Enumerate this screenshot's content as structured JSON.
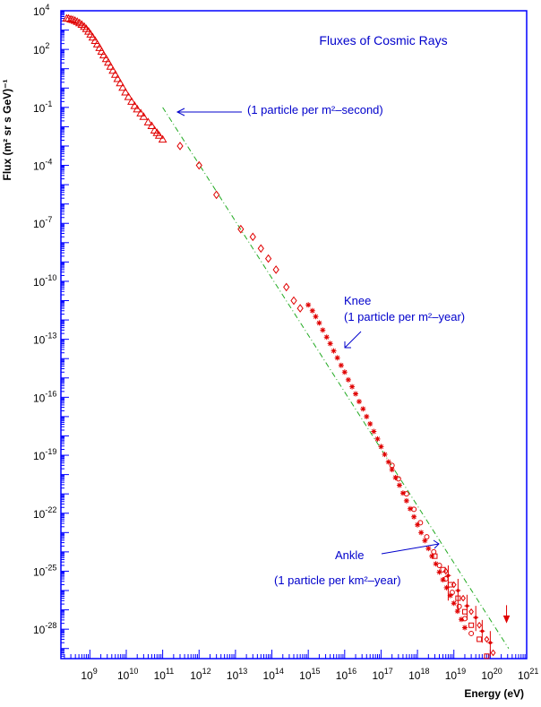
{
  "chart_data": {
    "type": "scatter",
    "title": "Fluxes of Cosmic Rays",
    "xlabel": "Energy (eV)",
    "ylabel": "Flux (m² sr s GeV)⁻¹",
    "xscale": "log",
    "yscale": "log",
    "xlim": [
      160000000.0,
      1e+21
    ],
    "ylim": [
      3e-30,
      10000.0
    ],
    "x_ticks": [
      {
        "base": "10",
        "exp": "9",
        "value": 1000000000.0
      },
      {
        "base": "10",
        "exp": "10",
        "value": 10000000000.0
      },
      {
        "base": "10",
        "exp": "11",
        "value": 100000000000.0
      },
      {
        "base": "10",
        "exp": "12",
        "value": 1000000000000.0
      },
      {
        "base": "10",
        "exp": "13",
        "value": 10000000000000.0
      },
      {
        "base": "10",
        "exp": "14",
        "value": 100000000000000.0
      },
      {
        "base": "10",
        "exp": "15",
        "value": 1000000000000000.0
      },
      {
        "base": "10",
        "exp": "16",
        "value": 1e+16
      },
      {
        "base": "10",
        "exp": "17",
        "value": 1e+17
      },
      {
        "base": "10",
        "exp": "18",
        "value": 1e+18
      },
      {
        "base": "10",
        "exp": "19",
        "value": 1e+19
      },
      {
        "base": "10",
        "exp": "20",
        "value": 1e+20
      },
      {
        "base": "10",
        "exp": "21",
        "value": 1e+21
      }
    ],
    "y_ticks": [
      {
        "base": "10",
        "exp": "4",
        "value": 10000.0
      },
      {
        "base": "10",
        "exp": "2",
        "value": 100.0
      },
      {
        "base": "10",
        "exp": "-1",
        "value": 0.1
      },
      {
        "base": "10",
        "exp": "-4",
        "value": 0.0001
      },
      {
        "base": "10",
        "exp": "-7",
        "value": 1e-07
      },
      {
        "base": "10",
        "exp": "-10",
        "value": 1e-10
      },
      {
        "base": "10",
        "exp": "-13",
        "value": 1e-13
      },
      {
        "base": "10",
        "exp": "-16",
        "value": 1e-16
      },
      {
        "base": "10",
        "exp": "-19",
        "value": 1e-19
      },
      {
        "base": "10",
        "exp": "-22",
        "value": 1e-22
      },
      {
        "base": "10",
        "exp": "-25",
        "value": 1e-25
      },
      {
        "base": "10",
        "exp": "-28",
        "value": 1e-28
      }
    ],
    "colors": {
      "data": "#e00000",
      "annotation": "#0000cc",
      "frame": "#0000ff",
      "fit_line": "#22aa22"
    },
    "fit_line": {
      "style": "dash-dot",
      "points": [
        [
          100000000000.0,
          0.1
        ],
        [
          3.2e+20,
          1e-29
        ]
      ]
    },
    "series": [
      {
        "marker": "triangle",
        "points": [
          [
            230000000.0,
            4000
          ],
          [
            260000000.0,
            4000
          ],
          [
            300000000.0,
            3600
          ],
          [
            340000000.0,
            3400
          ],
          [
            390000000.0,
            3100
          ],
          [
            450000000.0,
            2700
          ],
          [
            520000000.0,
            2300
          ],
          [
            600000000.0,
            1900
          ],
          [
            700000000.0,
            1500
          ],
          [
            800000000.0,
            1150
          ],
          [
            920000000.0,
            850
          ],
          [
            1050000000.0,
            600
          ],
          [
            1200000000.0,
            420
          ],
          [
            1400000000.0,
            280
          ],
          [
            1600000000.0,
            185
          ],
          [
            1850000000.0,
            120
          ],
          [
            2100000000.0,
            78
          ],
          [
            2400000000.0,
            50
          ],
          [
            2800000000.0,
            32
          ],
          [
            3200000000.0,
            21
          ],
          [
            3700000000.0,
            13
          ],
          [
            4300000000.0,
            8
          ],
          [
            5000000000.0,
            5
          ],
          [
            5800000000.0,
            3
          ],
          [
            6800000000.0,
            1.8
          ],
          [
            8000000000.0,
            1.05
          ],
          [
            9500000000.0,
            0.6
          ],
          [
            11500000000.0,
            0.35
          ],
          [
            14000000000.0,
            0.2
          ],
          [
            17000000000.0,
            0.12
          ],
          [
            20000000000.0,
            0.08
          ],
          [
            25000000000.0,
            0.05
          ],
          [
            30000000000.0,
            0.033
          ],
          [
            40000000000.0,
            0.017
          ],
          [
            50000000000.0,
            0.011
          ],
          [
            60000000000.0,
            0.0065
          ],
          [
            70000000000.0,
            0.0048
          ],
          [
            80000000000.0,
            0.0035
          ],
          [
            100000000000.0,
            0.0022
          ]
        ]
      },
      {
        "marker": "diamond",
        "points": [
          [
            300000000000.0,
            0.001
          ],
          [
            1000000000000.0,
            0.0001
          ],
          [
            3000000000000.0,
            3e-06
          ],
          [
            14000000000000.0,
            5e-08
          ],
          [
            30000000000000.0,
            2e-08
          ],
          [
            50000000000000.0,
            5e-09
          ],
          [
            80000000000000.0,
            1.5e-09
          ],
          [
            130000000000000.0,
            4e-10
          ],
          [
            250000000000000.0,
            5e-11
          ],
          [
            400000000000000.0,
            1e-11
          ],
          [
            600000000000000.0,
            4e-12
          ]
        ]
      },
      {
        "marker": "star",
        "points": [
          [
            1000000000000000.0,
            6e-12
          ],
          [
            1300000000000000.0,
            3e-12
          ],
          [
            1600000000000000.0,
            1.5e-12
          ],
          [
            2000000000000000.0,
            7e-13
          ],
          [
            2500000000000000.0,
            3e-13
          ],
          [
            3200000000000000.0,
            1.3e-13
          ],
          [
            4000000000000000.0,
            6e-14
          ],
          [
            5000000000000000.0,
            2.5e-14
          ],
          [
            6300000000000000.0,
            1.1e-14
          ],
          [
            8000000000000000.0,
            4.5e-15
          ],
          [
            1e+16,
            2e-15
          ],
          [
            1.26e+16,
            8e-16
          ],
          [
            1.6e+16,
            3.5e-16
          ],
          [
            2e+16,
            1.5e-16
          ],
          [
            2.5e+16,
            6e-17
          ],
          [
            3.2e+16,
            2.5e-17
          ],
          [
            4e+16,
            1e-17
          ],
          [
            5e+16,
            4.2e-18
          ],
          [
            6.3e+16,
            1.7e-18
          ],
          [
            8e+16,
            7e-19
          ],
          [
            1e+17,
            2.8e-19
          ],
          [
            1.26e+17,
            1.1e-19
          ],
          [
            1.6e+17,
            4.5e-20
          ],
          [
            2e+17,
            1.8e-20
          ],
          [
            2.5e+17,
            7e-21
          ],
          [
            3.2e+17,
            2.8e-21
          ],
          [
            4e+17,
            1.1e-21
          ],
          [
            5e+17,
            4.4e-22
          ],
          [
            6.3e+17,
            1.7e-22
          ],
          [
            8e+17,
            6.5e-23
          ],
          [
            1e+18,
            2.5e-23
          ],
          [
            1.26e+18,
            1e-23
          ],
          [
            1.6e+18,
            3.8e-24
          ],
          [
            2e+18,
            1.5e-24
          ],
          [
            2.5e+18,
            6e-25
          ],
          [
            3.2e+18,
            2.4e-25
          ],
          [
            4e+18,
            9e-26
          ],
          [
            5e+18,
            3.6e-26
          ],
          [
            6.3e+18,
            1.4e-26
          ],
          [
            8e+18,
            5.5e-27
          ],
          [
            1e+19,
            2.2e-27
          ],
          [
            1.26e+19,
            8.5e-28
          ],
          [
            1.6e+19,
            3.2e-28
          ],
          [
            2e+19,
            1.2e-28
          ]
        ]
      },
      {
        "marker": "circle",
        "points": [
          [
            2e+17,
            3e-20
          ],
          [
            3e+17,
            6e-21
          ],
          [
            5e+17,
            1e-21
          ],
          [
            8e+17,
            1.6e-22
          ],
          [
            1.2e+18,
            3.2e-23
          ],
          [
            1.8e+18,
            6e-24
          ],
          [
            2.8e+18,
            1e-24
          ],
          [
            4e+18,
            2e-25
          ],
          [
            6e+18,
            4e-26
          ],
          [
            9e+18,
            8e-27
          ],
          [
            1.4e+19,
            1.5e-27
          ],
          [
            2e+19,
            3.5e-28
          ],
          [
            3e+19,
            6e-29
          ]
        ]
      },
      {
        "marker": "square",
        "points": [
          [
            3e+18,
            6e-25
          ],
          [
            5e+18,
            1.2e-25
          ],
          [
            8e+18,
            2e-26
          ],
          [
            1.3e+19,
            4e-27
          ],
          [
            2e+19,
            8e-28
          ],
          [
            3e+19,
            1.6e-28
          ],
          [
            5e+19,
            3e-29
          ],
          [
            8e+19,
            4e-30
          ]
        ]
      },
      {
        "marker": "open-diamond",
        "points": [
          [
            6e+18,
            1e-25
          ],
          [
            1e+19,
            2e-26
          ],
          [
            1.8e+19,
            4e-27
          ],
          [
            3e+19,
            8e-28
          ],
          [
            5e+19,
            1.6e-28
          ],
          [
            8e+19,
            3e-29
          ],
          [
            1.2e+20,
            6e-30
          ]
        ]
      },
      {
        "marker": "error",
        "points": [
          [
            7e+18,
            6e-26,
            2e-25,
            3e-27
          ],
          [
            1.3e+19,
            1e-26,
            4e-26,
            1e-27
          ],
          [
            2.3e+19,
            1.6e-27,
            6e-27,
            3e-28
          ],
          [
            4e+19,
            4e-28,
            1.6e-27,
            8e-29
          ],
          [
            6e+19,
            8e-29,
            3e-28,
            2e-29
          ],
          [
            1e+20,
            2e-29,
            8e-29,
            4e-30
          ]
        ]
      },
      {
        "marker": "upper-limit",
        "points": [
          [
            2.8e+20,
            6e-28
          ]
        ]
      }
    ],
    "annotations": [
      {
        "lines": [
          "(1 particle per m²–second)"
        ]
      },
      {
        "lines": [
          "Knee",
          "(1 particle per m²–year)"
        ]
      },
      {
        "lines": [
          "Ankle",
          "(1 particle per km²–year)"
        ]
      }
    ]
  }
}
